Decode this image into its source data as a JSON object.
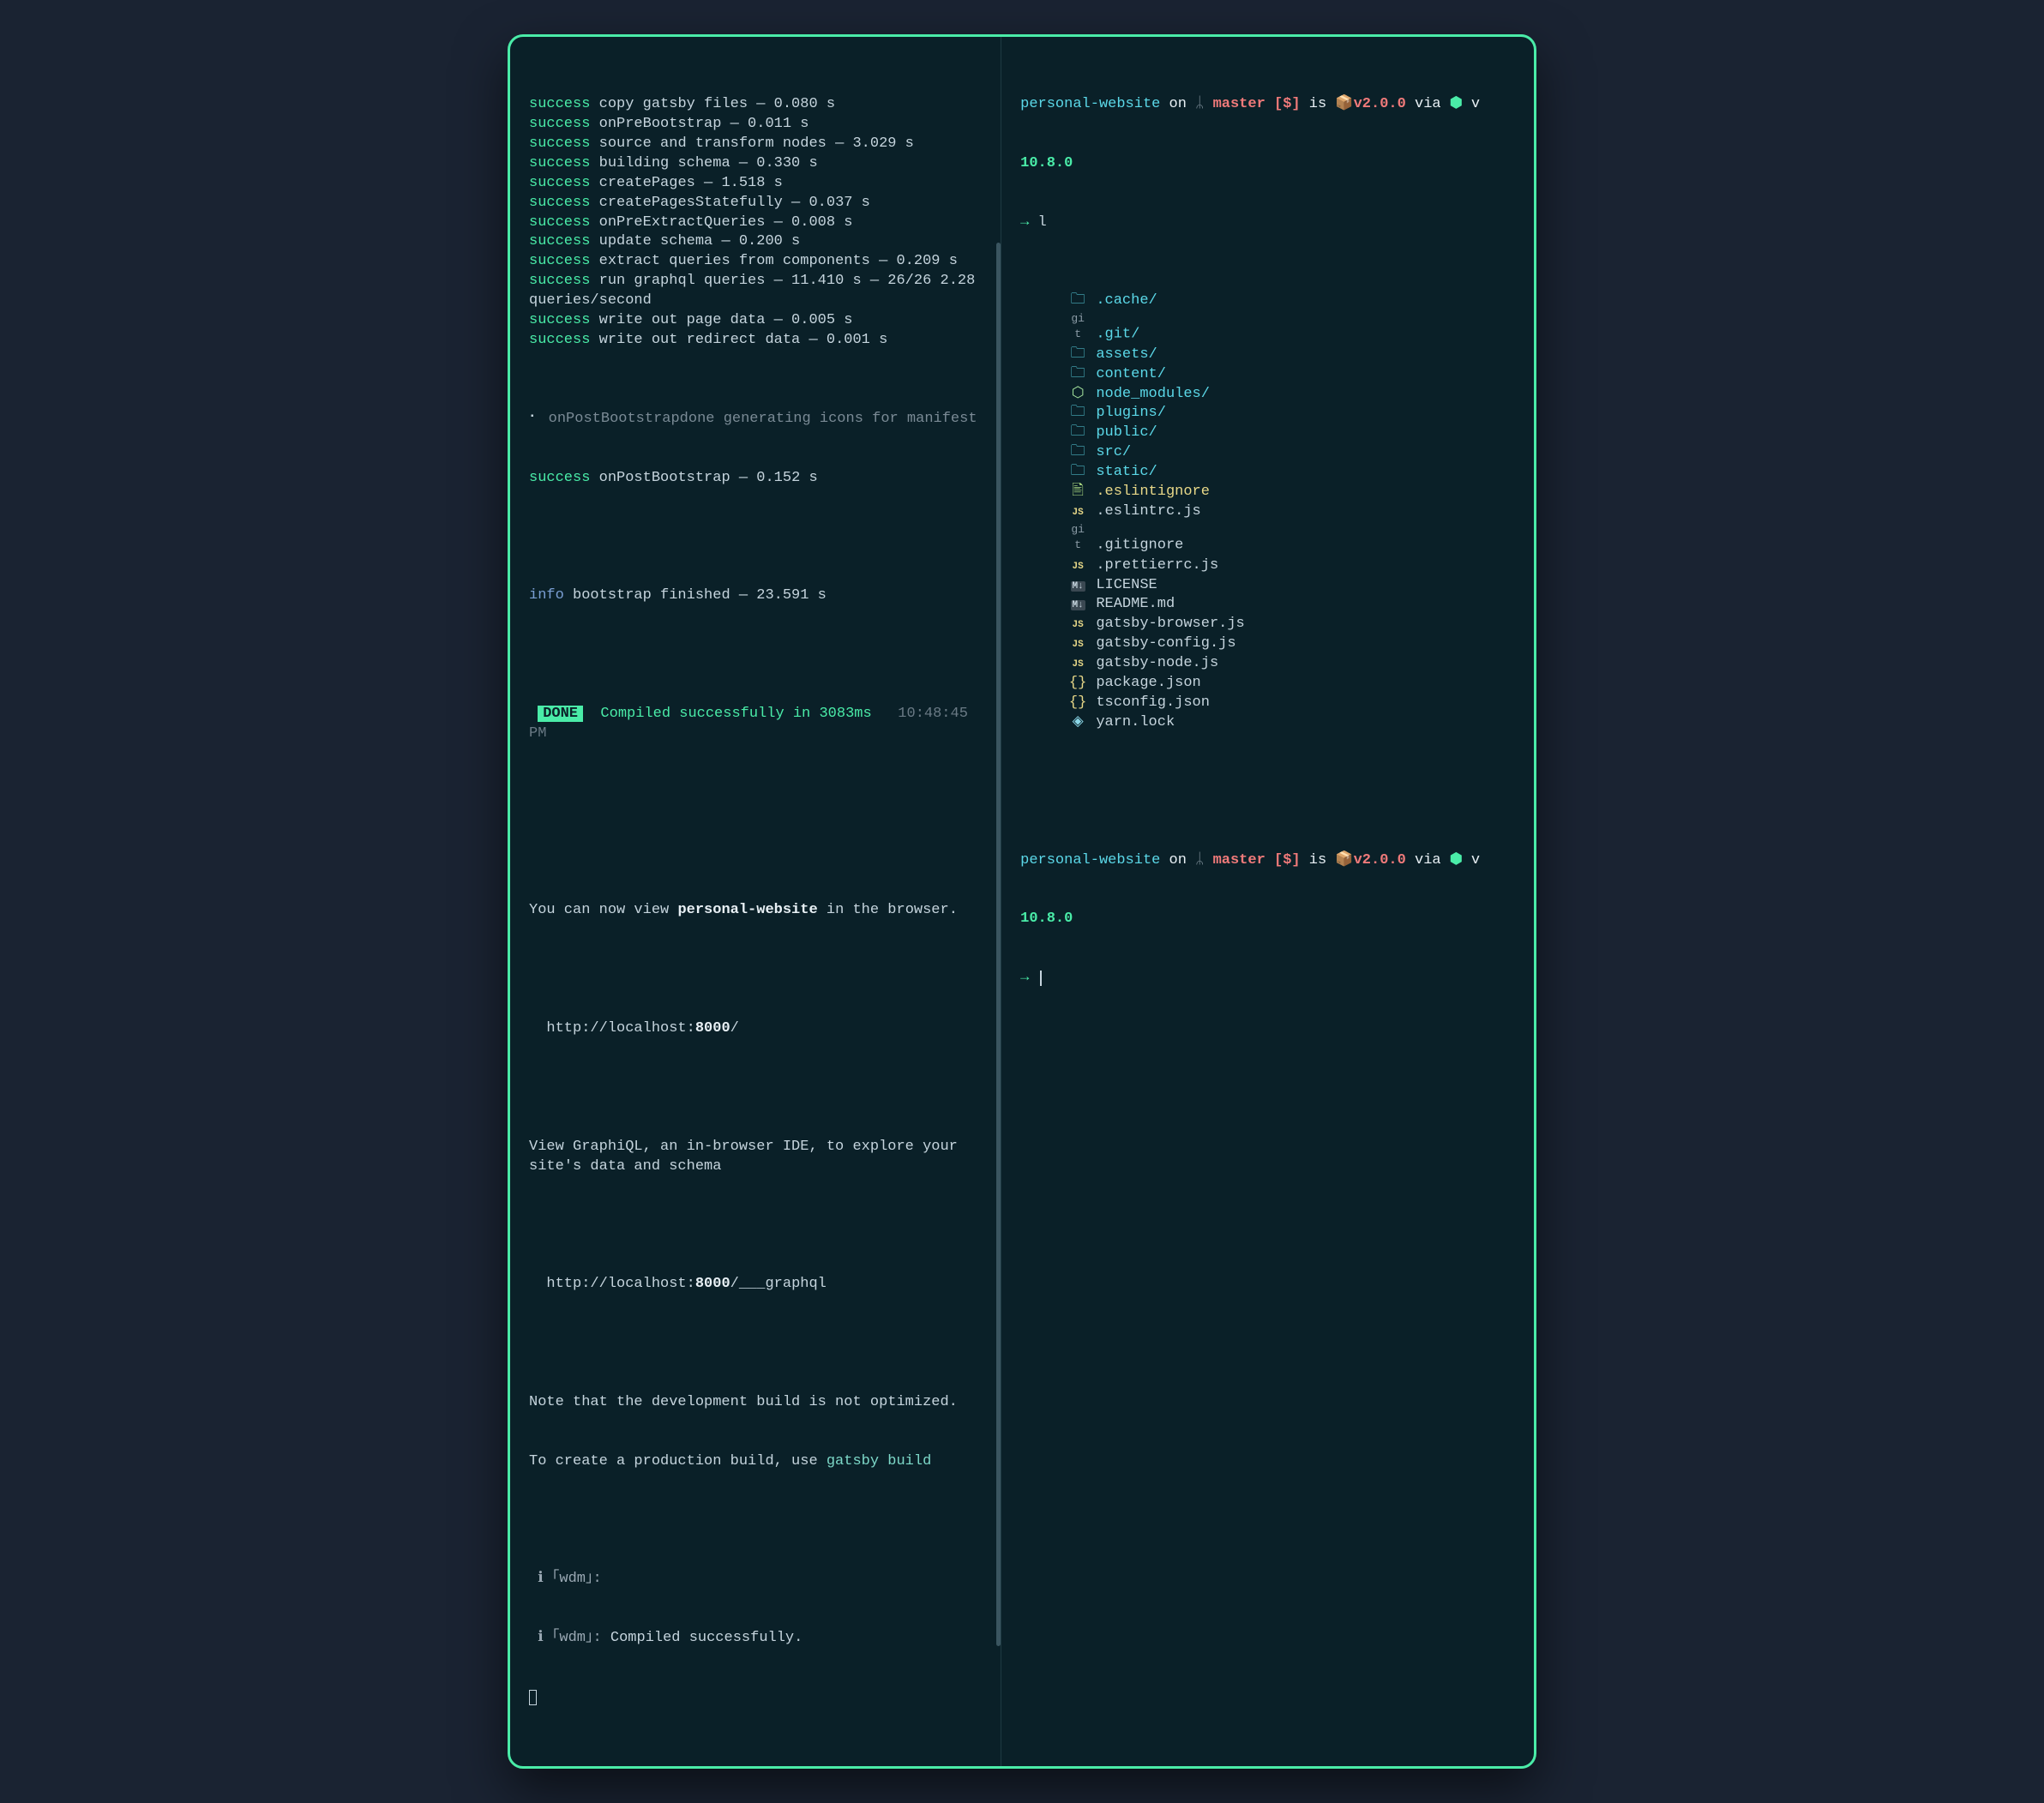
{
  "colors": {
    "background": "#0a2028",
    "border": "#4aeca8",
    "text": "#c5d4dd",
    "success": "#4aeca8",
    "info": "#7a9fd4",
    "cyan": "#5bd8e8",
    "red": "#f07a7a",
    "orange": "#e8a05a",
    "yellow": "#e8d888",
    "dim": "#7a8a95"
  },
  "left": {
    "build_steps": [
      {
        "status": "success",
        "label": "copy gatsby files",
        "time": "0.080 s"
      },
      {
        "status": "success",
        "label": "onPreBootstrap",
        "time": "0.011 s"
      },
      {
        "status": "success",
        "label": "source and transform nodes",
        "time": "3.029 s"
      },
      {
        "status": "success",
        "label": "building schema",
        "time": "0.330 s"
      },
      {
        "status": "success",
        "label": "createPages",
        "time": "1.518 s"
      },
      {
        "status": "success",
        "label": "createPagesStatefully",
        "time": "0.037 s"
      },
      {
        "status": "success",
        "label": "onPreExtractQueries",
        "time": "0.008 s"
      },
      {
        "status": "success",
        "label": "update schema",
        "time": "0.200 s"
      },
      {
        "status": "success",
        "label": "extract queries from components",
        "time": "0.209 s"
      },
      {
        "status": "success",
        "label": "run graphql queries",
        "time": "11.410 s — 26/26 2.28 queries/second"
      },
      {
        "status": "success",
        "label": "write out page data",
        "time": "0.005 s"
      },
      {
        "status": "success",
        "label": "write out redirect data",
        "time": "0.001 s"
      }
    ],
    "post_bootstrap_line": "onPostBootstrapdone generating icons for manifest",
    "post_bootstrap_step": {
      "status": "success",
      "label": "onPostBootstrap",
      "time": "0.152 s"
    },
    "info_line": {
      "status": "info",
      "text": "bootstrap finished — 23.591 s"
    },
    "done": {
      "badge": "DONE",
      "message": "Compiled successfully in 3083ms",
      "timestamp": "10:48:45 PM"
    },
    "view_line_prefix": "You can now view ",
    "view_line_bold": "personal-website",
    "view_line_suffix": " in the browser.",
    "url_local_prefix": "  http://localhost:",
    "url_local_port": "8000",
    "url_local_suffix": "/",
    "graphiql_text": "View GraphiQL, an in-browser IDE, to explore your site's data and schema",
    "url_graphql_prefix": "  http://localhost:",
    "url_graphql_port": "8000",
    "url_graphql_suffix": "/___graphql",
    "note_line1": "Note that the development build is not optimized.",
    "note_line2_prefix": "To create a production build, use ",
    "note_line2_cmd": "gatsby build",
    "wdm1": "｢wdm｣:",
    "wdm2_prefix": "｢wdm｣: ",
    "wdm2_msg": "Compiled successfully."
  },
  "right": {
    "prompt1": {
      "dir": "personal-website",
      "on": " on ",
      "branch_icon": "ᛦ",
      "branch": "master",
      "status": "[$]",
      "is": " is ",
      "pkg_icon": "📦",
      "version": "v2.0.0",
      "via": " via ",
      "node_icon": "⬢",
      "v": " v ",
      "node_version": "10.8.0"
    },
    "cmd1": "l",
    "ls": [
      {
        "icon": "folder",
        "name": ".cache/",
        "type": "dir"
      },
      {
        "icon": "git",
        "name": ".git/",
        "type": "dir"
      },
      {
        "icon": "folder",
        "name": "assets/",
        "type": "dir"
      },
      {
        "icon": "folder",
        "name": "content/",
        "type": "dir"
      },
      {
        "icon": "node",
        "name": "node_modules/",
        "type": "dir"
      },
      {
        "icon": "folder",
        "name": "plugins/",
        "type": "dir"
      },
      {
        "icon": "folder",
        "name": "public/",
        "type": "dir"
      },
      {
        "icon": "folder",
        "name": "src/",
        "type": "dir"
      },
      {
        "icon": "folder",
        "name": "static/",
        "type": "dir"
      },
      {
        "icon": "file",
        "name": ".eslintignore",
        "type": "file",
        "color": "yellow"
      },
      {
        "icon": "js",
        "name": ".eslintrc.js",
        "type": "file"
      },
      {
        "icon": "git",
        "name": ".gitignore",
        "type": "file"
      },
      {
        "icon": "js",
        "name": ".prettierrc.js",
        "type": "file"
      },
      {
        "icon": "md",
        "name": "LICENSE",
        "type": "file"
      },
      {
        "icon": "md",
        "name": "README.md",
        "type": "file"
      },
      {
        "icon": "js",
        "name": "gatsby-browser.js",
        "type": "file"
      },
      {
        "icon": "js",
        "name": "gatsby-config.js",
        "type": "file"
      },
      {
        "icon": "js",
        "name": "gatsby-node.js",
        "type": "file"
      },
      {
        "icon": "braces",
        "name": "package.json",
        "type": "file"
      },
      {
        "icon": "braces",
        "name": "tsconfig.json",
        "type": "file"
      },
      {
        "icon": "diamond",
        "name": "yarn.lock",
        "type": "file"
      }
    ],
    "prompt2": {
      "dir": "personal-website",
      "on": " on ",
      "branch_icon": "ᛦ",
      "branch": "master",
      "status": "[$]",
      "is": " is ",
      "pkg_icon": "📦",
      "version": "v2.0.0",
      "via": " via ",
      "node_icon": "⬢",
      "v": " v ",
      "node_version": "10.8.0"
    }
  }
}
